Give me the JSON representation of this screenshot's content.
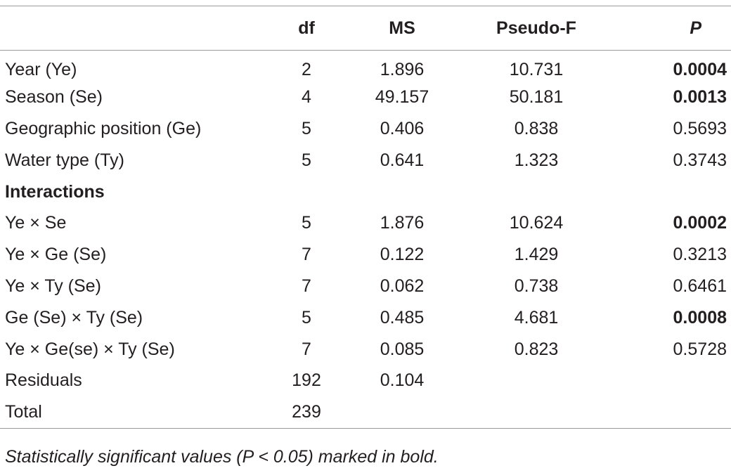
{
  "table": {
    "headers": {
      "label": "",
      "df": "df",
      "ms": "MS",
      "pseudo_f": "Pseudo-F",
      "p": "P"
    },
    "rows": [
      {
        "label": "Year (Ye)",
        "df": "2",
        "ms": "1.896",
        "pseudo_f": "10.731",
        "p": "0.0004",
        "significant": true
      },
      {
        "label": "Season (Se)",
        "df": "4",
        "ms": "49.157",
        "pseudo_f": "50.181",
        "p": "0.0013",
        "significant": true
      },
      {
        "label": "Geographic position (Ge)",
        "df": "5",
        "ms": "0.406",
        "pseudo_f": "0.838",
        "p": "0.5693",
        "significant": false
      },
      {
        "label": "Water type (Ty)",
        "df": "5",
        "ms": "0.641",
        "pseudo_f": "1.323",
        "p": "0.3743",
        "significant": false
      },
      {
        "label": "Interactions",
        "section": true
      },
      {
        "label": "Ye × Se",
        "df": "5",
        "ms": "1.876",
        "pseudo_f": "10.624",
        "p": "0.0002",
        "significant": true
      },
      {
        "label": "Ye × Ge (Se)",
        "df": "7",
        "ms": "0.122",
        "pseudo_f": "1.429",
        "p": "0.3213",
        "significant": false
      },
      {
        "label": "Ye × Ty (Se)",
        "df": "7",
        "ms": "0.062",
        "pseudo_f": "0.738",
        "p": "0.6461",
        "significant": false
      },
      {
        "label": "Ge (Se) × Ty (Se)",
        "df": "5",
        "ms": "0.485",
        "pseudo_f": "4.681",
        "p": "0.0008",
        "significant": true
      },
      {
        "label": "Ye × Ge(se) × Ty (Se)",
        "df": "7",
        "ms": "0.085",
        "pseudo_f": "0.823",
        "p": "0.5728",
        "significant": false
      },
      {
        "label": "Residuals",
        "df": "192",
        "ms": "0.104",
        "pseudo_f": "",
        "p": "",
        "significant": false
      },
      {
        "label": "Total",
        "df": "239",
        "ms": "",
        "pseudo_f": "",
        "p": "",
        "significant": false
      }
    ]
  },
  "footnote": "Statistically significant values (P < 0.05) marked in bold.",
  "colors": {
    "text": "#231f20",
    "rule": "#9a9a9a",
    "background": "#ffffff"
  }
}
